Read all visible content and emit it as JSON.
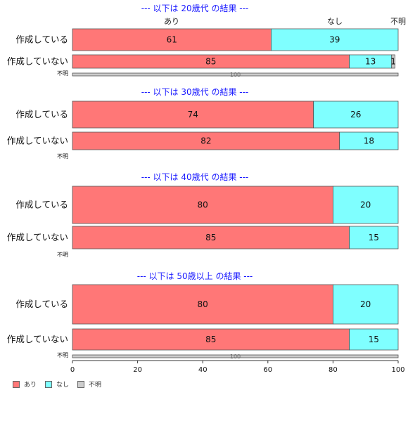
{
  "chart_data": {
    "type": "bar",
    "orientation": "horizontal",
    "stacked": true,
    "xlim": [
      0,
      100
    ],
    "x_ticks": [
      0,
      20,
      40,
      60,
      80,
      100
    ],
    "series_names": [
      "あり",
      "なし",
      "不明"
    ],
    "colors": [
      "#FF7777",
      "#7FFFFF",
      "#CCCCCC"
    ],
    "top_labels": [
      "あり",
      "なし",
      "不明"
    ],
    "legend": {
      "placement": "bottom-left",
      "labels": [
        "あり",
        "なし",
        "不明"
      ]
    },
    "panels": [
      {
        "title": "--- 以下は 20歳代 の結果 ---",
        "rows": [
          {
            "label": "作成している",
            "values": [
              61,
              39,
              0
            ],
            "data_labels": [
              "61",
              "39",
              ""
            ]
          },
          {
            "label": "作成していない",
            "values": [
              85,
              13,
              1
            ],
            "data_labels": [
              "85",
              "13",
              "1"
            ]
          },
          {
            "label": "不明",
            "values": [
              0,
              0,
              100
            ],
            "data_labels": [
              "",
              "",
              "100"
            ]
          }
        ]
      },
      {
        "title": "--- 以下は 30歳代 の結果 ---",
        "rows": [
          {
            "label": "作成している",
            "values": [
              74,
              26,
              0
            ],
            "data_labels": [
              "74",
              "26",
              ""
            ]
          },
          {
            "label": "作成していない",
            "values": [
              82,
              18,
              0
            ],
            "data_labels": [
              "82",
              "18",
              ""
            ]
          },
          {
            "label": "不明",
            "values": [
              0,
              0,
              0
            ],
            "data_labels": [
              "",
              "",
              ""
            ]
          }
        ]
      },
      {
        "title": "--- 以下は 40歳代 の結果 ---",
        "rows": [
          {
            "label": "作成している",
            "values": [
              80,
              20,
              0
            ],
            "data_labels": [
              "80",
              "20",
              ""
            ]
          },
          {
            "label": "作成していない",
            "values": [
              85,
              15,
              0
            ],
            "data_labels": [
              "85",
              "15",
              ""
            ]
          },
          {
            "label": "不明",
            "values": [
              0,
              0,
              0
            ],
            "data_labels": [
              "",
              "",
              ""
            ]
          }
        ]
      },
      {
        "title": "--- 以下は 50歳以上 の結果 ---",
        "rows": [
          {
            "label": "作成している",
            "values": [
              80,
              20,
              0
            ],
            "data_labels": [
              "80",
              "20",
              ""
            ]
          },
          {
            "label": "作成していない",
            "values": [
              85,
              15,
              0
            ],
            "data_labels": [
              "85",
              "15",
              ""
            ]
          },
          {
            "label": "不明",
            "values": [
              0,
              0,
              100
            ],
            "data_labels": [
              "",
              "",
              "100"
            ]
          }
        ]
      }
    ]
  }
}
